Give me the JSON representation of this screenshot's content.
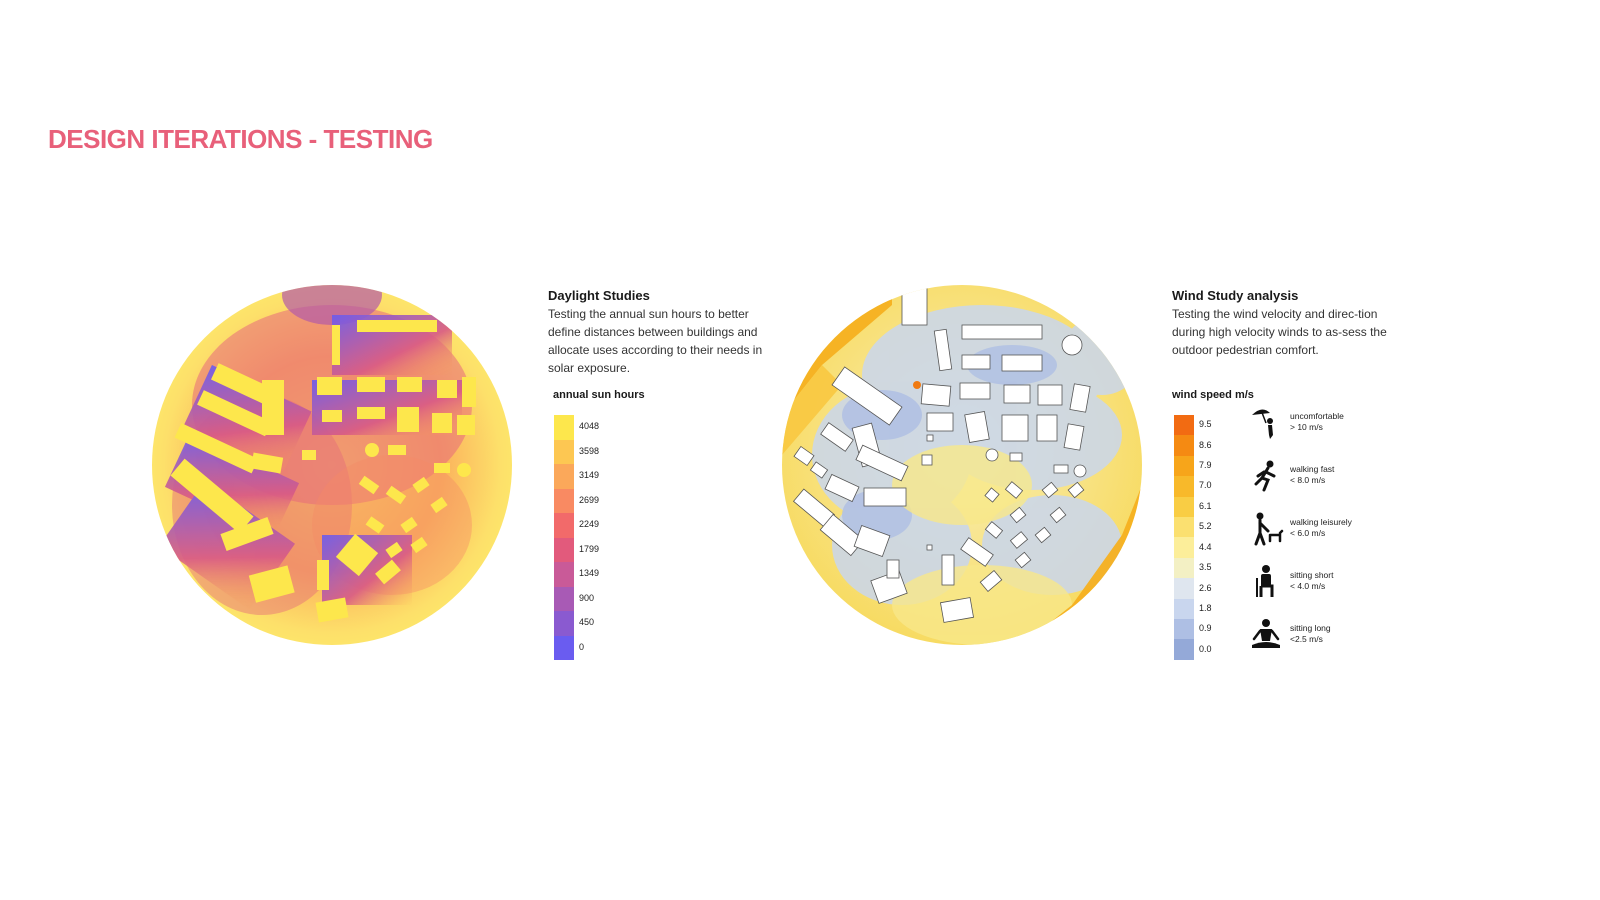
{
  "page": {
    "title": "DESIGN ITERATIONS - TESTING"
  },
  "daylight": {
    "heading": "Daylight Studies",
    "body": "Testing the annual sun hours to better define distances between buildings and allocate uses according to their needs in solar exposure.",
    "legend_title": "annual sun hours",
    "scale": [
      {
        "label": "4048",
        "color": "#fde74c"
      },
      {
        "label": "3598",
        "color": "#fdc752"
      },
      {
        "label": "3149",
        "color": "#fba85a"
      },
      {
        "label": "2699",
        "color": "#f98a62"
      },
      {
        "label": "2249",
        "color": "#f26a6a"
      },
      {
        "label": "1799",
        "color": "#e25a7c"
      },
      {
        "label": "1349",
        "color": "#c95a98"
      },
      {
        "label": "900",
        "color": "#a85ab5"
      },
      {
        "label": "450",
        "color": "#8a5ad0"
      },
      {
        "label": "0",
        "color": "#6a5cf0"
      }
    ]
  },
  "wind": {
    "heading": "Wind Study analysis",
    "body": "Testing the wind velocity and direc-tion during high velocity winds to as-sess the outdoor pedestrian comfort.",
    "legend_title": "wind speed m/s",
    "scale": [
      {
        "label": "9.5",
        "color": "#f26b12"
      },
      {
        "label": "8.6",
        "color": "#f58a12"
      },
      {
        "label": "7.9",
        "color": "#f7a51a"
      },
      {
        "label": "7.0",
        "color": "#f8b92a"
      },
      {
        "label": "6.1",
        "color": "#f9cd44"
      },
      {
        "label": "5.2",
        "color": "#fbe070"
      },
      {
        "label": "4.4",
        "color": "#fcee9a"
      },
      {
        "label": "3.5",
        "color": "#f3f0c4"
      },
      {
        "label": "2.6",
        "color": "#dfe6ef"
      },
      {
        "label": "1.8",
        "color": "#c9d6ee"
      },
      {
        "label": "0.9",
        "color": "#aebfe4"
      },
      {
        "label": "0.0",
        "color": "#94a9d8"
      }
    ],
    "comfort": [
      {
        "icon": "umbrella-person-icon",
        "label": "uncomfortable",
        "value": "> 10 m/s"
      },
      {
        "icon": "running-person-icon",
        "label": "walking fast",
        "value": "< 8.0 m/s"
      },
      {
        "icon": "walking-dog-icon",
        "label": "walking leisurely",
        "value": "< 6.0 m/s"
      },
      {
        "icon": "sitting-person-icon",
        "label": "sitting short",
        "value": "< 4.0 m/s"
      },
      {
        "icon": "meditating-person-icon",
        "label": "sitting long",
        "value": "<2.5 m/s"
      }
    ]
  }
}
